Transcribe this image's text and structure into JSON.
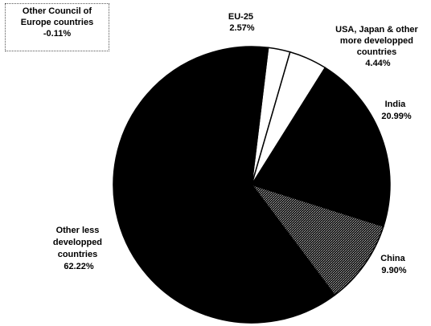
{
  "chart_data": {
    "type": "pie",
    "title": "",
    "slices": [
      {
        "label": "EU-25",
        "value": 2.57,
        "display": "2.57%",
        "color": "#ffffff"
      },
      {
        "label": "USA, Japan & other more developped countries",
        "value": 4.44,
        "display": "4.44%",
        "color": "#ffffff"
      },
      {
        "label": "India",
        "value": 20.99,
        "display": "20.99%",
        "color": "#000000"
      },
      {
        "label": "China",
        "value": 9.9,
        "display": "9.90%",
        "color": "#3a3a3a"
      },
      {
        "label": "Other less developped countries",
        "value": 62.22,
        "display": "62.22%",
        "color": "#000000"
      },
      {
        "label": "Other Council of Europe countries",
        "value": -0.11,
        "display": "-0.11%",
        "color": "#ffffff"
      }
    ]
  },
  "labels": {
    "eu": [
      "EU-25",
      "2.57%"
    ],
    "usa": [
      "USA, Japan & other",
      "more developped",
      "countries",
      "4.44%"
    ],
    "india": [
      "India",
      "20.99%"
    ],
    "china": [
      "China",
      "9.90%"
    ],
    "other_less": [
      "Other less",
      "developped",
      "countries",
      "62.22%"
    ],
    "other_council": [
      "Other Council of",
      "Europe countries",
      "-0.11%"
    ]
  }
}
